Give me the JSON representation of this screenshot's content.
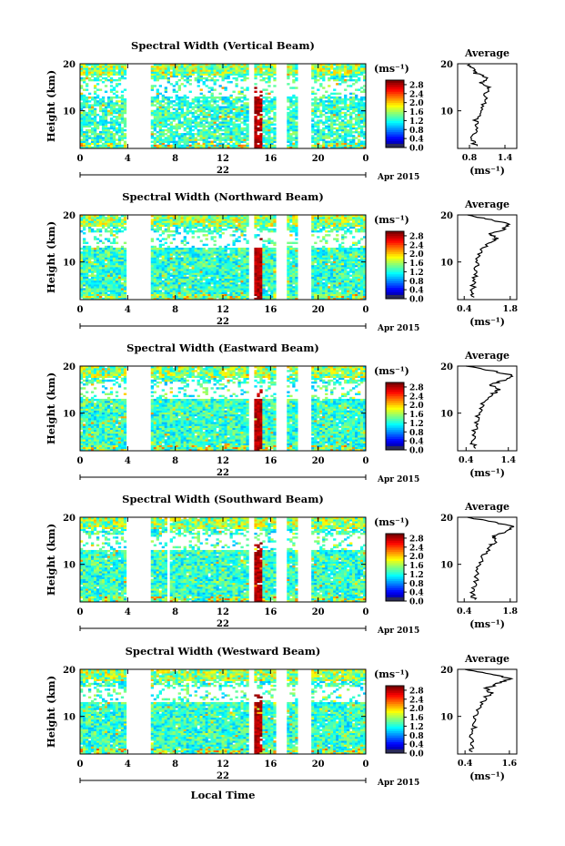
{
  "chart_data": [
    {
      "type": "heatmap",
      "title": "Spectral Width (Vertical Beam)",
      "ylabel": "Height (km)",
      "yticks": [
        "10",
        "20"
      ],
      "ylim": [
        2,
        20
      ],
      "xticks": [
        "0",
        "4",
        "8",
        "12",
        "16",
        "20",
        "0"
      ],
      "xlim": [
        0,
        24
      ],
      "date_day": "22",
      "date_label": "Apr 2015",
      "data_gaps_hours": [
        [
          4,
          6
        ],
        [
          14.1,
          14.6
        ],
        [
          16.5,
          17.3
        ],
        [
          18.4,
          19.4
        ]
      ],
      "colorbar": {
        "unit": "(ms⁻¹)",
        "tick_labels": [
          "2.8",
          "2.4",
          "2.0",
          "1.6",
          "1.2",
          "0.8",
          "0.4",
          "0.0"
        ],
        "range": [
          0.0,
          3.0
        ]
      },
      "average_profile": {
        "title": "Average",
        "xticks": [
          "0.8",
          "1.4"
        ],
        "xlim": [
          0.6,
          1.6
        ],
        "xlabel": "(ms⁻¹)",
        "yticks": [
          "10",
          "20"
        ],
        "points": [
          [
            2.5,
            0.9
          ],
          [
            4,
            0.85
          ],
          [
            6,
            0.95
          ],
          [
            8,
            0.9
          ],
          [
            10,
            1.0
          ],
          [
            12,
            1.05
          ],
          [
            14,
            1.1
          ],
          [
            15,
            1.15
          ],
          [
            16,
            1.0
          ],
          [
            17,
            1.1
          ],
          [
            18,
            0.9
          ],
          [
            19,
            0.85
          ],
          [
            20,
            0.8
          ]
        ]
      }
    },
    {
      "type": "heatmap",
      "title": "Spectral Width (Northward Beam)",
      "ylabel": "Height (km)",
      "yticks": [
        "10",
        "20"
      ],
      "ylim": [
        2,
        20
      ],
      "xticks": [
        "0",
        "4",
        "8",
        "12",
        "16",
        "20",
        "0"
      ],
      "xlim": [
        0,
        24
      ],
      "date_day": "22",
      "date_label": "Apr 2015",
      "data_gaps_hours": [
        [
          4,
          6
        ],
        [
          14.1,
          14.6
        ],
        [
          16.5,
          17.3
        ],
        [
          18.4,
          19.4
        ]
      ],
      "colorbar": {
        "unit": "(ms⁻¹)",
        "tick_labels": [
          "2.8",
          "2.4",
          "2.0",
          "1.6",
          "1.2",
          "0.8",
          "0.4",
          "0.0"
        ],
        "range": [
          0.0,
          3.0
        ]
      },
      "average_profile": {
        "title": "Average",
        "xticks": [
          "0.4",
          "1.8"
        ],
        "xlim": [
          0.2,
          2.0
        ],
        "xlabel": "(ms⁻¹)",
        "yticks": [
          "10",
          "20"
        ],
        "points": [
          [
            2.5,
            0.7
          ],
          [
            4,
            0.65
          ],
          [
            6,
            0.7
          ],
          [
            8,
            0.75
          ],
          [
            10,
            0.8
          ],
          [
            12,
            0.9
          ],
          [
            14,
            1.1
          ],
          [
            15,
            1.4
          ],
          [
            16,
            1.2
          ],
          [
            17,
            1.6
          ],
          [
            18,
            1.8
          ],
          [
            19,
            1.2
          ],
          [
            20,
            0.5
          ]
        ]
      }
    },
    {
      "type": "heatmap",
      "title": "Spectral Width (Eastward Beam)",
      "ylabel": "Height (km)",
      "yticks": [
        "10",
        "20"
      ],
      "ylim": [
        2,
        20
      ],
      "xticks": [
        "0",
        "4",
        "8",
        "12",
        "16",
        "20",
        "0"
      ],
      "xlim": [
        0,
        24
      ],
      "date_day": "22",
      "date_label": "Apr 2015",
      "data_gaps_hours": [
        [
          4,
          6
        ],
        [
          14.1,
          14.6
        ],
        [
          16.5,
          17.3
        ],
        [
          18.4,
          19.4
        ]
      ],
      "colorbar": {
        "unit": "(ms⁻¹)",
        "tick_labels": [
          "2.8",
          "2.4",
          "2.0",
          "1.6",
          "1.2",
          "0.8",
          "0.4",
          "0.0"
        ],
        "range": [
          0.0,
          3.0
        ]
      },
      "average_profile": {
        "title": "Average",
        "xticks": [
          "0.4",
          "1.4"
        ],
        "xlim": [
          0.2,
          1.6
        ],
        "xlabel": "(ms⁻¹)",
        "yticks": [
          "10",
          "20"
        ],
        "points": [
          [
            2.5,
            0.6
          ],
          [
            4,
            0.55
          ],
          [
            6,
            0.6
          ],
          [
            8,
            0.65
          ],
          [
            10,
            0.7
          ],
          [
            12,
            0.8
          ],
          [
            14,
            1.0
          ],
          [
            15,
            1.2
          ],
          [
            16,
            1.0
          ],
          [
            17,
            1.3
          ],
          [
            18,
            1.5
          ],
          [
            19,
            1.0
          ],
          [
            20,
            0.4
          ]
        ]
      }
    },
    {
      "type": "heatmap",
      "title": "Spectral Width (Southward Beam)",
      "ylabel": "Height (km)",
      "yticks": [
        "10",
        "20"
      ],
      "ylim": [
        2,
        20
      ],
      "xticks": [
        "0",
        "4",
        "8",
        "12",
        "16",
        "20",
        "0"
      ],
      "xlim": [
        0,
        24
      ],
      "date_day": "22",
      "date_label": "Apr 2015",
      "data_gaps_hours": [
        [
          4,
          6
        ],
        [
          7.3,
          7.6
        ],
        [
          14.1,
          14.6
        ],
        [
          16.5,
          17.3
        ],
        [
          18.4,
          19.4
        ]
      ],
      "colorbar": {
        "unit": "(ms⁻¹)",
        "tick_labels": [
          "2.8",
          "2.4",
          "2.0",
          "1.6",
          "1.2",
          "0.8",
          "0.4",
          "0.0"
        ],
        "range": [
          0.0,
          3.0
        ]
      },
      "average_profile": {
        "title": "Average",
        "xticks": [
          "0.4",
          "1.8"
        ],
        "xlim": [
          0.2,
          2.0
        ],
        "xlabel": "(ms⁻¹)",
        "yticks": [
          "10",
          "20"
        ],
        "points": [
          [
            2.5,
            0.7
          ],
          [
            4,
            0.65
          ],
          [
            6,
            0.75
          ],
          [
            8,
            0.8
          ],
          [
            10,
            0.85
          ],
          [
            12,
            1.0
          ],
          [
            14,
            1.2
          ],
          [
            15,
            1.4
          ],
          [
            16,
            1.3
          ],
          [
            17,
            1.7
          ],
          [
            18,
            1.9
          ],
          [
            19,
            1.3
          ],
          [
            20,
            0.5
          ]
        ]
      }
    },
    {
      "type": "heatmap",
      "title": "Spectral Width (Westward Beam)",
      "ylabel": "Height (km)",
      "yticks": [
        "10",
        "20"
      ],
      "ylim": [
        2,
        20
      ],
      "xticks": [
        "0",
        "4",
        "8",
        "12",
        "16",
        "20",
        "0"
      ],
      "xlim": [
        0,
        24
      ],
      "date_day": "22",
      "date_label": "Apr 2015",
      "xlabel": "Local Time",
      "data_gaps_hours": [
        [
          4,
          6
        ],
        [
          14.1,
          14.6
        ],
        [
          16.5,
          17.3
        ],
        [
          18.4,
          19.4
        ]
      ],
      "colorbar": {
        "unit": "(ms⁻¹)",
        "tick_labels": [
          "2.8",
          "2.4",
          "2.0",
          "1.6",
          "1.2",
          "0.8",
          "0.4",
          "0.0"
        ],
        "range": [
          0.0,
          3.0
        ]
      },
      "average_profile": {
        "title": "Average",
        "xticks": [
          "0.4",
          "1.6"
        ],
        "xlim": [
          0.2,
          1.8
        ],
        "xlabel": "(ms⁻¹)",
        "yticks": [
          "10",
          "20"
        ],
        "points": [
          [
            2.5,
            0.6
          ],
          [
            4,
            0.55
          ],
          [
            6,
            0.6
          ],
          [
            8,
            0.65
          ],
          [
            10,
            0.7
          ],
          [
            12,
            0.8
          ],
          [
            14,
            0.95
          ],
          [
            15,
            1.1
          ],
          [
            16,
            1.0
          ],
          [
            17,
            1.3
          ],
          [
            18,
            1.6
          ],
          [
            19,
            1.1
          ],
          [
            20,
            0.4
          ]
        ]
      }
    }
  ]
}
